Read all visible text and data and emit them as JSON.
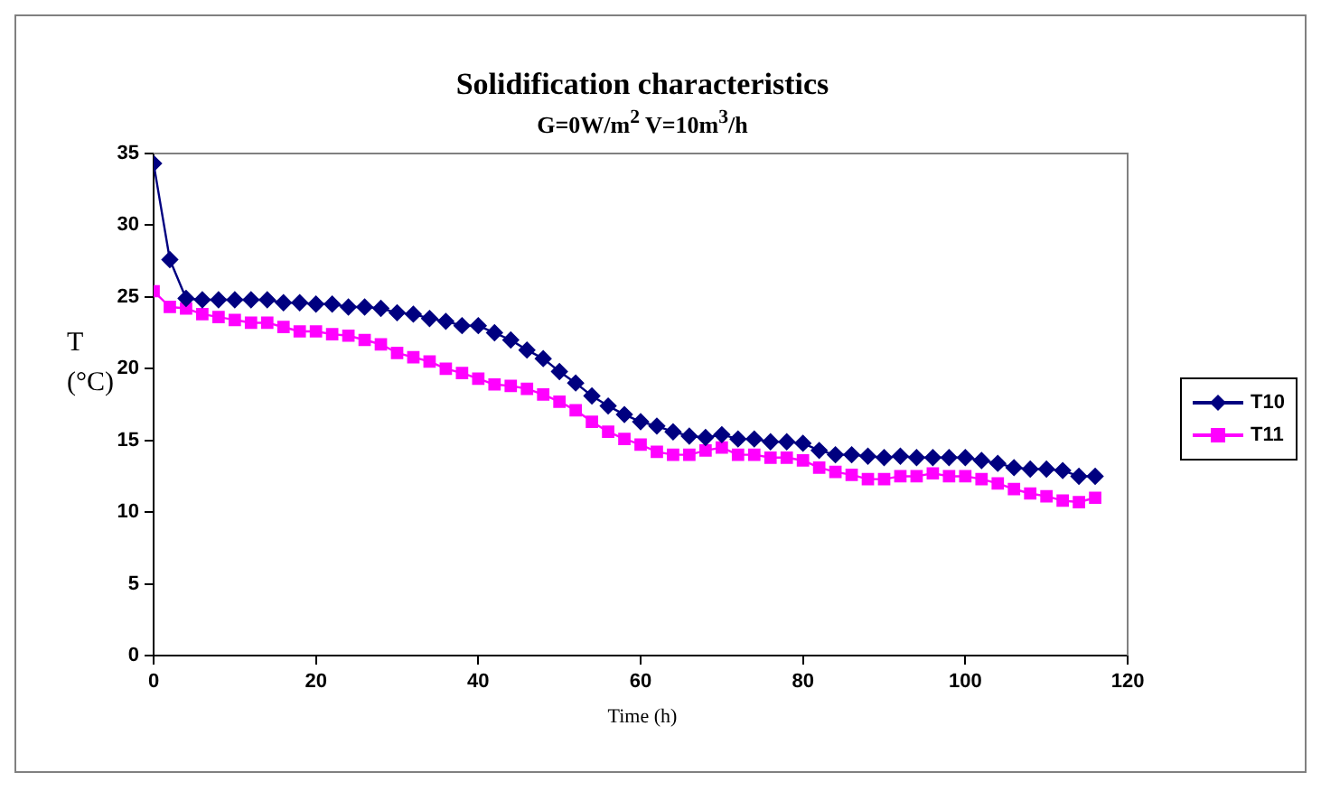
{
  "chart_data": {
    "type": "line",
    "title": "Solidification characteristics",
    "subtitle": "G=0W/m$^{2}$ V=10m$^{3}$/h",
    "xlabel": "Time (h)",
    "ylabel": "T (°C)",
    "x": [
      0,
      2,
      4,
      6,
      8,
      10,
      12,
      14,
      16,
      18,
      20,
      22,
      24,
      26,
      28,
      30,
      32,
      34,
      36,
      38,
      40,
      42,
      44,
      46,
      48,
      50,
      52,
      54,
      56,
      58,
      60,
      62,
      64,
      66,
      68,
      70,
      72,
      74,
      76,
      78,
      80,
      82,
      84,
      86,
      88,
      90,
      92,
      94,
      96,
      98,
      100,
      102,
      104,
      106,
      108,
      110,
      112,
      114,
      116
    ],
    "series": [
      {
        "name": "T10",
        "color": "#000080",
        "marker": "diamond",
        "values": [
          34.3,
          27.6,
          24.9,
          24.8,
          24.8,
          24.8,
          24.8,
          24.8,
          24.6,
          24.6,
          24.5,
          24.5,
          24.3,
          24.3,
          24.2,
          23.9,
          23.8,
          23.5,
          23.3,
          23.0,
          23.0,
          22.5,
          22.0,
          21.3,
          20.7,
          19.8,
          19.0,
          18.1,
          17.4,
          16.8,
          16.3,
          16.0,
          15.6,
          15.3,
          15.2,
          15.4,
          15.1,
          15.1,
          14.9,
          14.9,
          14.8,
          14.3,
          14.0,
          14.0,
          13.9,
          13.8,
          13.9,
          13.8,
          13.8,
          13.8,
          13.8,
          13.6,
          13.4,
          13.1,
          13.0,
          13.0,
          12.9,
          12.5,
          12.5
        ]
      },
      {
        "name": "T11",
        "color": "#ff00ff",
        "marker": "square",
        "values": [
          25.4,
          24.3,
          24.2,
          23.8,
          23.6,
          23.4,
          23.2,
          23.2,
          22.9,
          22.6,
          22.6,
          22.4,
          22.3,
          22.0,
          21.7,
          21.1,
          20.8,
          20.5,
          20.0,
          19.7,
          19.3,
          18.9,
          18.8,
          18.6,
          18.2,
          17.7,
          17.1,
          16.3,
          15.6,
          15.1,
          14.7,
          14.2,
          14.0,
          14.0,
          14.3,
          14.5,
          14.0,
          14.0,
          13.8,
          13.8,
          13.6,
          13.1,
          12.8,
          12.6,
          12.3,
          12.3,
          12.5,
          12.5,
          12.7,
          12.5,
          12.5,
          12.3,
          12.0,
          11.6,
          11.3,
          11.1,
          10.8,
          10.7,
          11.0
        ]
      }
    ],
    "xlim": [
      0,
      120
    ],
    "xticks": [
      0,
      20,
      40,
      60,
      80,
      100,
      120
    ],
    "ylim": [
      0,
      35
    ],
    "yticks": [
      0,
      5,
      10,
      15,
      20,
      25,
      30,
      35
    ],
    "grid": false,
    "legend": "right",
    "line_style": "solid"
  }
}
